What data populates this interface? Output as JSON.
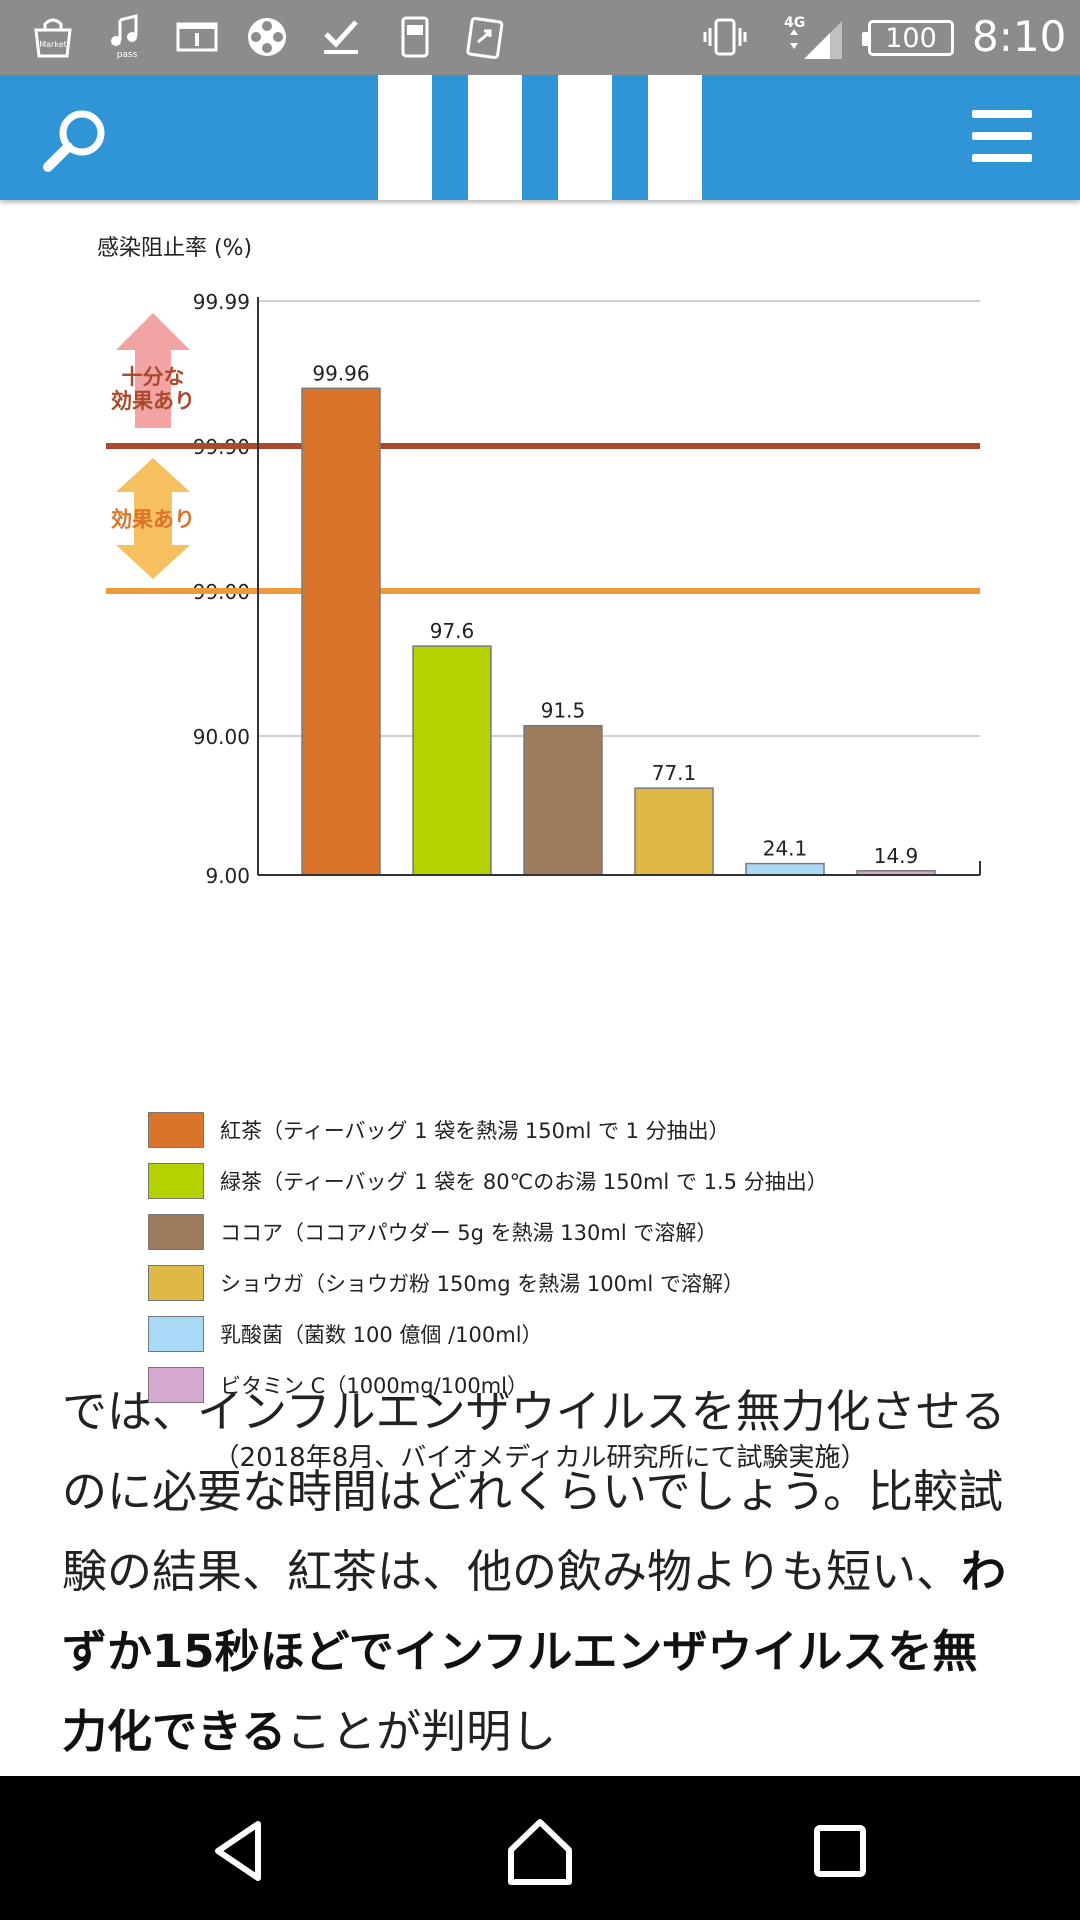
{
  "status_bar": {
    "time": "8:10",
    "battery": "100",
    "network": "4G",
    "icons": [
      "market-icon",
      "music-pass-icon",
      "info-icon",
      "film-reel-icon",
      "download-done-icon",
      "phone-icon",
      "share-icon",
      "vibrate-icon",
      "signal-icon",
      "battery-icon"
    ],
    "icon_labels": {
      "market": "Market",
      "pass": "pass"
    }
  },
  "header": {
    "background_color": "#2f95d6",
    "search_icon": "search-icon",
    "menu_icon": "hamburger-menu-icon"
  },
  "chart_data": {
    "type": "bar",
    "ylabel": "感染阻止率 (%)",
    "yscale": "log-of-complement",
    "y_ticks": [
      "99.99",
      "99.90",
      "99.00",
      "90.00",
      "9.00"
    ],
    "ylim": [
      9.0,
      99.99
    ],
    "categories": [
      "紅茶",
      "緑茶",
      "ココア",
      "ショウガ",
      "乳酸菌",
      "ビタミンC"
    ],
    "values": [
      99.96,
      97.6,
      91.5,
      77.1,
      24.1,
      14.9
    ],
    "value_labels": [
      "99.96",
      "97.6",
      "91.5",
      "77.1",
      "24.1",
      "14.9"
    ],
    "colors": [
      "#d9742a",
      "#b5d100",
      "#9e7b5c",
      "#e0b845",
      "#a8daf5",
      "#d4a8cf"
    ],
    "thresholds": [
      {
        "value": 99.9,
        "color": "#a94a2c",
        "label": "十分な\n効果あり"
      },
      {
        "value": 99.0,
        "color": "#ee9a3a",
        "label": "効果あり"
      }
    ],
    "threshold_labels": {
      "strong_line1": "十分な",
      "strong_line2": "効果あり",
      "effective": "効果あり"
    },
    "legend": [
      {
        "label": "紅茶（ティーバッグ 1 袋を熱湯 150ml で 1 分抽出）",
        "color": "#d9742a"
      },
      {
        "label": "緑茶（ティーバッグ 1 袋を 80℃のお湯 150ml で 1.5 分抽出）",
        "color": "#b5d100"
      },
      {
        "label": "ココア（ココアパウダー 5g を熱湯 130ml で溶解）",
        "color": "#9e7b5c"
      },
      {
        "label": "ショウガ（ショウガ粉 150mg を熱湯 100ml で溶解）",
        "color": "#e0b845"
      },
      {
        "label": "乳酸菌（菌数 100 億個 /100ml）",
        "color": "#a8daf5"
      },
      {
        "label": "ビタミン C（1000mg/100ml）",
        "color": "#d4a8cf"
      }
    ],
    "grid": true,
    "legend_placement": "bottom"
  },
  "note": "（2018年8月、バイオメディカル研究所にて試験実施）",
  "article": {
    "text_before": "では、インフルエンザウイルスを無力化させるのに必要な時間はどれくらいでしょう。比較試験の結果、紅茶は、他の飲み物よりも短い、",
    "text_bold": "わずか15秒ほどでインフルエンザウイルスを無力化できる",
    "text_after": "ことが判明し"
  },
  "nav_bar": {
    "back_icon": "back-triangle-icon",
    "home_icon": "home-icon",
    "recents_icon": "recents-square-icon"
  }
}
